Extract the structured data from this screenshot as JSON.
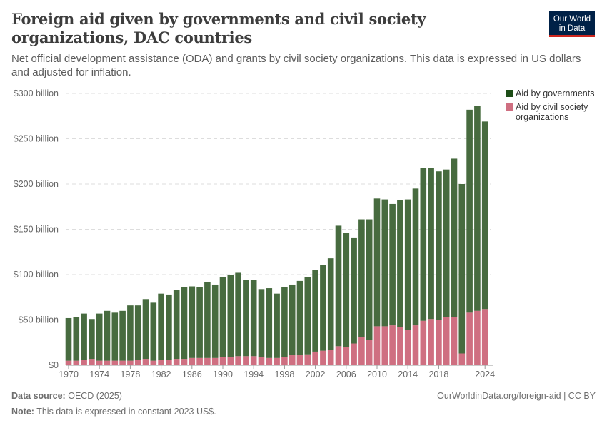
{
  "title": "Foreign aid given by governments and civil society organizations, DAC countries",
  "subtitle": "Net official development assistance (ODA) and grants by civil society organizations. This data is expressed in US dollars and adjusted for inflation.",
  "logo": "Our World in Data",
  "footer": {
    "source_label": "Data source:",
    "source": "OECD (2025)",
    "url": "OurWorldinData.org/foreign-aid | CC BY",
    "note_label": "Note:",
    "note": "This data is expressed in constant 2023 US$."
  },
  "chart_data": {
    "type": "bar",
    "stacked": true,
    "x": [
      1970,
      1971,
      1972,
      1973,
      1974,
      1975,
      1976,
      1977,
      1978,
      1979,
      1980,
      1981,
      1982,
      1983,
      1984,
      1985,
      1986,
      1987,
      1988,
      1989,
      1990,
      1991,
      1992,
      1993,
      1994,
      1995,
      1996,
      1997,
      1998,
      1999,
      2000,
      2001,
      2002,
      2003,
      2004,
      2005,
      2006,
      2007,
      2008,
      2009,
      2010,
      2011,
      2012,
      2013,
      2014,
      2015,
      2016,
      2017,
      2018,
      2019,
      2020,
      2021,
      2022,
      2023,
      2024
    ],
    "series": [
      {
        "name": "Aid by civil society organizations",
        "color": "#cf6f81",
        "values": [
          5,
          5,
          6,
          7,
          5,
          5,
          5,
          5,
          5,
          6,
          7,
          5,
          6,
          6,
          7,
          7,
          8,
          8,
          8,
          8,
          9,
          9,
          10,
          10,
          10,
          9,
          8,
          8,
          9,
          11,
          11,
          12,
          15,
          16,
          17,
          21,
          20,
          24,
          31,
          28,
          43,
          43,
          44,
          42,
          39,
          44,
          49,
          51,
          50,
          53,
          53,
          13,
          58,
          60,
          62
        ]
      },
      {
        "name": "Aid by governments",
        "color": "#476b3f",
        "values": [
          47,
          48,
          51,
          44,
          52,
          55,
          53,
          55,
          61,
          60,
          66,
          64,
          73,
          72,
          76,
          79,
          79,
          78,
          84,
          81,
          88,
          91,
          92,
          84,
          84,
          75,
          77,
          71,
          77,
          78,
          82,
          85,
          90,
          95,
          101,
          133,
          126,
          117,
          130,
          133,
          141,
          140,
          134,
          140,
          144,
          151,
          169,
          167,
          164,
          163,
          175,
          187,
          224,
          226,
          207
        ]
      }
    ],
    "y_ticks": [
      "$0",
      "$50 billion",
      "$100 billion",
      "$150 billion",
      "$200 billion",
      "$250 billion",
      "$300 billion"
    ],
    "x_ticks": [
      "1970",
      "1974",
      "1978",
      "1982",
      "1986",
      "1990",
      "1994",
      "1998",
      "2002",
      "2006",
      "2010",
      "2014",
      "2018",
      "2024"
    ],
    "ylim": [
      0,
      300
    ],
    "unit": "billion US$",
    "grid": true,
    "legend": "top-right",
    "legend_entries": [
      "Aid by governments",
      "Aid by civil society organizations"
    ]
  }
}
